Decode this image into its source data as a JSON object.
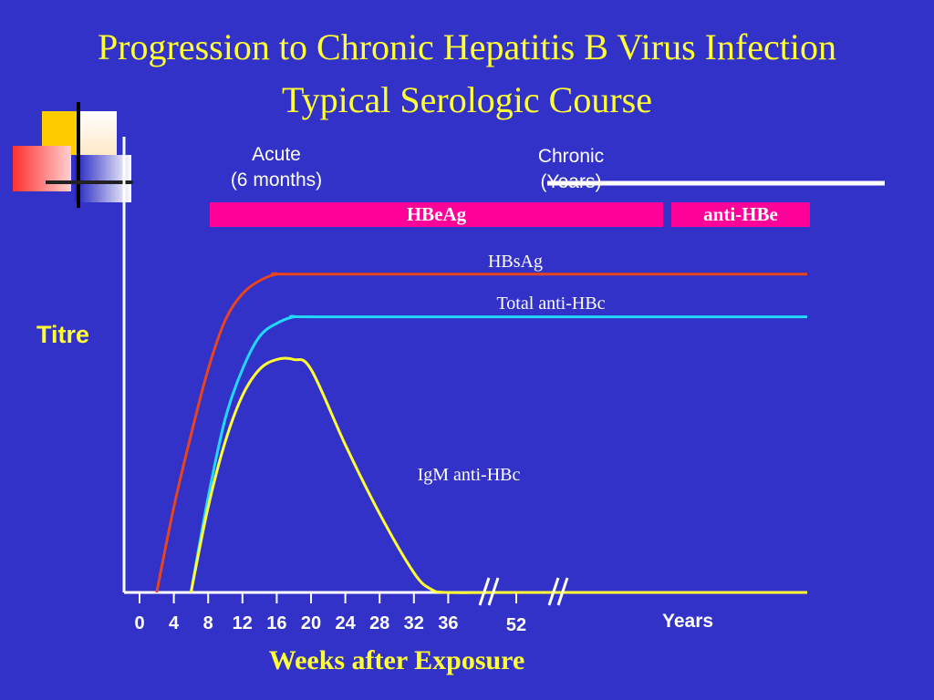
{
  "slide": {
    "title_line1": "Progression to Chronic Hepatitis B Virus Infection",
    "title_line2": "Typical Serologic Course"
  },
  "phases": {
    "acute_line1": "Acute",
    "acute_line2": "(6 months)",
    "chronic_line1": "Chronic",
    "chronic_line2": "(Years)"
  },
  "bands": {
    "hbeag": "HBeAg",
    "anti_hbe": "anti-HBe"
  },
  "colors": {
    "background": "#3232c8",
    "title": "#ffff33",
    "band": "#ff0099",
    "hbsag": "#e8441e",
    "total_anti_hbc": "#22d8ff",
    "igm_anti_hbc": "#ffff33",
    "axis": "#ffffff"
  },
  "chart_data": {
    "type": "line",
    "ylabel": "Titre",
    "xlabel": "Weeks after Exposure",
    "x_ticks": [
      0,
      4,
      8,
      12,
      16,
      20,
      24,
      28,
      32,
      36,
      52
    ],
    "x_tick_labels": [
      "0",
      "4",
      "8",
      "12",
      "16",
      "20",
      "24",
      "28",
      "32",
      "36",
      "52"
    ],
    "x_extra_label": "Years",
    "axis_breaks_after": [
      36,
      52
    ],
    "xlim": [
      0,
      52
    ],
    "ylim": [
      0,
      100
    ],
    "grid": false,
    "series": [
      {
        "name": "HBsAg",
        "color": "#e8441e",
        "x": [
          2,
          4,
          6,
          8,
          10,
          12,
          14,
          16,
          18,
          52,
          "Years"
        ],
        "y": [
          0,
          26,
          48,
          68,
          83,
          91,
          95,
          97,
          97,
          97,
          97
        ]
      },
      {
        "name": "Total anti-HBc",
        "color": "#22d8ff",
        "x": [
          6,
          8,
          10,
          12,
          14,
          16,
          18,
          20,
          52,
          "Years"
        ],
        "y": [
          0,
          29,
          53,
          68,
          78,
          82,
          84,
          84,
          84,
          84
        ]
      },
      {
        "name": "IgM anti-HBc",
        "color": "#ffff33",
        "x": [
          6,
          8,
          10,
          12,
          14,
          16,
          18,
          20,
          24,
          28,
          32,
          34,
          36,
          52,
          "Years"
        ],
        "y": [
          0,
          26,
          46,
          60,
          68,
          71,
          71,
          68,
          45,
          24,
          6,
          1,
          0,
          0,
          0
        ]
      }
    ]
  }
}
